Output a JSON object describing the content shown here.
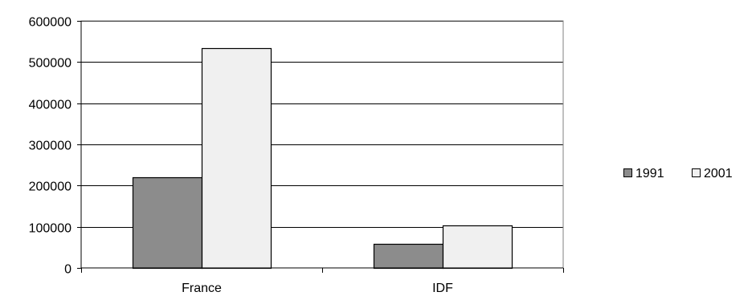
{
  "chart_data": {
    "type": "bar",
    "title": "",
    "xlabel": "",
    "ylabel": "",
    "categories": [
      "France",
      "IDF"
    ],
    "series": [
      {
        "name": "1991",
        "values": [
          221000,
          58000
        ],
        "color": "#8c8c8c"
      },
      {
        "name": "2001",
        "values": [
          533000,
          104000
        ],
        "color": "#f0f0f0"
      }
    ],
    "ylim": [
      0,
      600000
    ],
    "yticks": [
      0,
      100000,
      200000,
      300000,
      400000,
      500000,
      600000
    ],
    "ytick_labels": [
      "0",
      "100000",
      "200000",
      "300000",
      "400000",
      "500000",
      "600000"
    ],
    "grid": true,
    "legend_position": "right"
  }
}
